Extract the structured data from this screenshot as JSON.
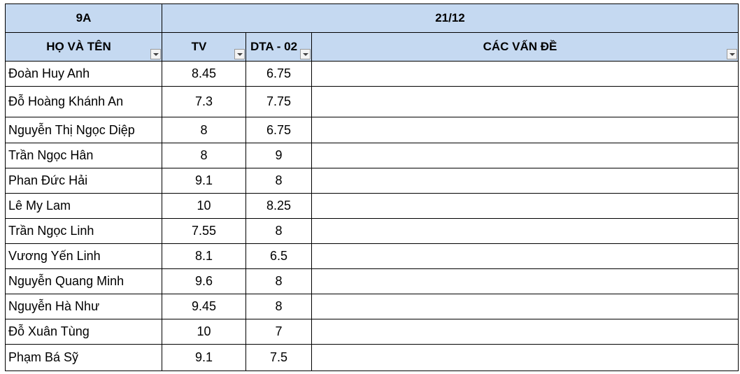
{
  "header": {
    "class_name": "9A",
    "date": "21/12"
  },
  "columns": [
    "HỌ VÀ TÊN",
    "TV",
    "DTA - 02",
    "CÁC VẤN ĐỀ"
  ],
  "rows": [
    [
      "Đoàn Huy Anh",
      8.45,
      6.75
    ],
    [
      "Đỗ Hoàng Khánh An",
      7.3,
      7.75
    ],
    [
      "Nguyễn Thị Ngọc Diệp",
      8,
      6.75
    ],
    [
      "Trần Ngọc Hân",
      8,
      9
    ],
    [
      "Phan Đức Hải",
      9.1,
      8
    ],
    [
      "Lê My Lam",
      10,
      8.25
    ],
    [
      "Trần Ngọc Linh",
      7.55,
      8
    ],
    [
      "Vương Yến Linh",
      8.1,
      6.5
    ],
    [
      "Nguyễn Quang Minh",
      9.6,
      8
    ],
    [
      "Nguyễn Hà Như",
      9.45,
      8
    ],
    [
      "Đỗ Xuân Tùng",
      10,
      7
    ],
    [
      "Phạm Bá Sỹ",
      9.1,
      7.5
    ]
  ]
}
